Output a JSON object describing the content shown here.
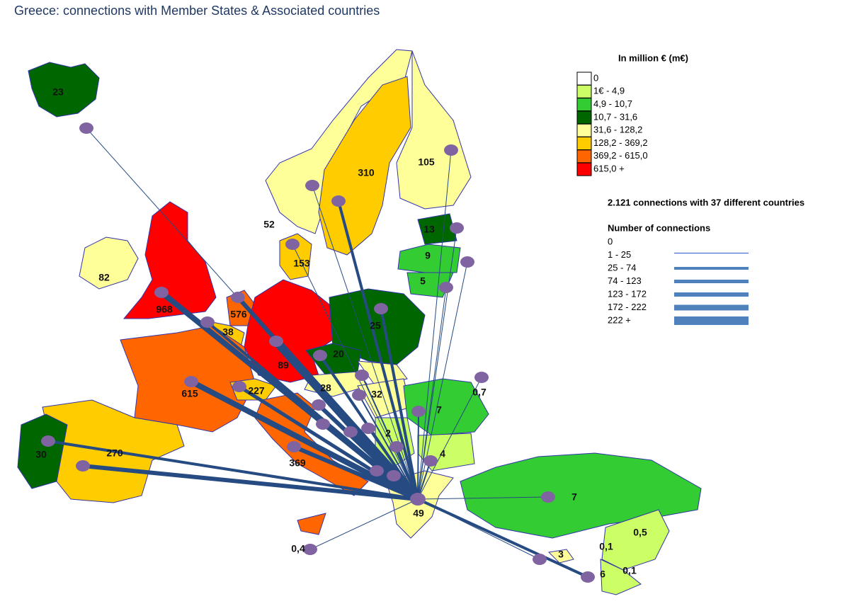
{
  "title": "Greece: connections with Member States & Associated countries",
  "legend": {
    "title": "In million € (m€)",
    "items": [
      "0",
      "1€  - 4,9",
      "4,9  - 10,7",
      "10,7  - 31,6",
      "31,6  - 128,2",
      "128,2  - 369,2",
      "369,2  - 615,0",
      "615,0  +"
    ]
  },
  "summary": "2.121 connections with 37 different countries",
  "connections_legend": {
    "title": "Number of connections",
    "items": [
      "0",
      "1  - 25",
      "25 - 74",
      "74 - 123",
      "123 - 172",
      "172 - 222",
      "222 +"
    ]
  },
  "map_labels": [
    "23",
    "105",
    "310",
    "52",
    "13",
    "9",
    "5",
    "82",
    "153",
    "968",
    "576",
    "38",
    "25",
    "20",
    "89",
    "615",
    "227",
    "28",
    "32",
    "0,7",
    "7",
    "4",
    "2",
    "30",
    "270",
    "369",
    "49",
    "7",
    "0,5",
    "0,1",
    "0,1",
    "3",
    "0,4",
    "6"
  ]
}
